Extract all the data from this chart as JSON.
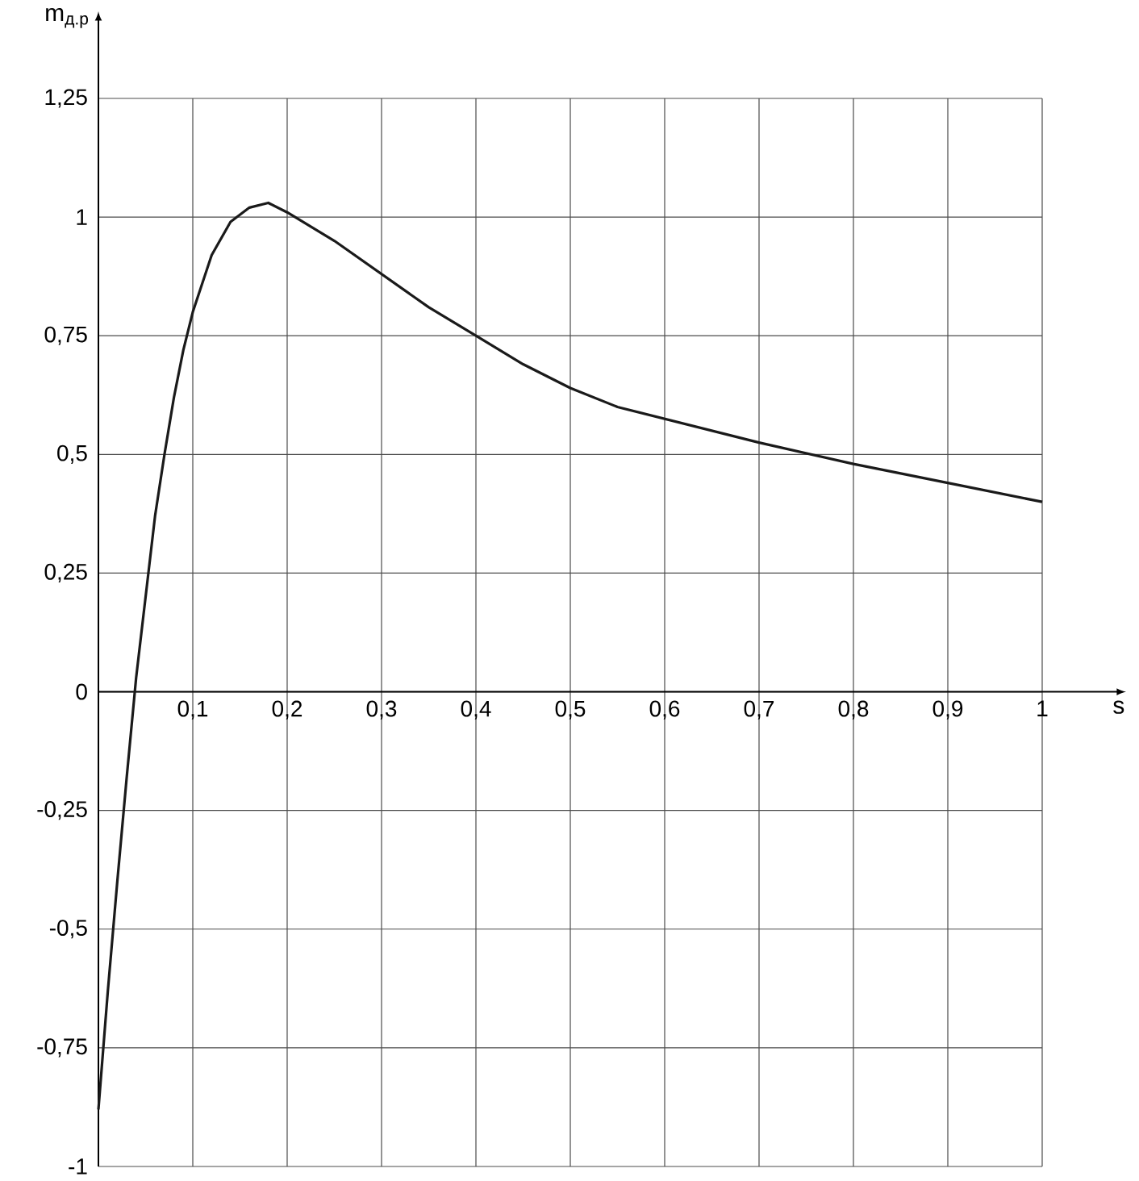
{
  "chart_data": {
    "type": "line",
    "xlabel": "s",
    "ylabel": "m$_{д.р}$",
    "x": [
      0,
      0.01,
      0.02,
      0.03,
      0.04,
      0.05,
      0.06,
      0.07,
      0.08,
      0.09,
      0.1,
      0.12,
      0.14,
      0.16,
      0.18,
      0.2,
      0.25,
      0.3,
      0.35,
      0.4,
      0.45,
      0.5,
      0.55,
      0.6,
      0.7,
      0.8,
      0.9,
      1
    ],
    "values": [
      -0.88,
      -0.63,
      -0.4,
      -0.18,
      0.03,
      0.2,
      0.37,
      0.5,
      0.62,
      0.72,
      0.8,
      0.92,
      0.99,
      1.02,
      1.03,
      1.01,
      0.95,
      0.88,
      0.81,
      0.75,
      0.69,
      0.64,
      0.6,
      0.575,
      0.525,
      0.48,
      0.44,
      0.4
    ],
    "color": "#1a1a1a",
    "xlim": [
      0,
      1
    ],
    "ylim": [
      -1,
      1.25
    ],
    "xticks": [
      {
        "value": 0.1,
        "label": "0,1"
      },
      {
        "value": 0.2,
        "label": "0,2"
      },
      {
        "value": 0.3,
        "label": "0,3"
      },
      {
        "value": 0.4,
        "label": "0,4"
      },
      {
        "value": 0.5,
        "label": "0,5"
      },
      {
        "value": 0.6,
        "label": "0,6"
      },
      {
        "value": 0.7,
        "label": "0,7"
      },
      {
        "value": 0.8,
        "label": "0,8"
      },
      {
        "value": 0.9,
        "label": "0,9"
      },
      1
    ],
    "yticks": [
      -1,
      {
        "value": -0.75,
        "label": "-0,75"
      },
      {
        "value": -0.5,
        "label": "-0,5"
      },
      {
        "value": -0.25,
        "label": "-0,25"
      },
      0,
      {
        "value": 0.25,
        "label": "0,25"
      },
      {
        "value": 0.5,
        "label": "0,5"
      },
      {
        "value": 0.75,
        "label": "0,75"
      },
      1,
      {
        "value": 1.25,
        "label": "1,25"
      }
    ],
    "grid": true,
    "marker": "none",
    "line_style": "solid"
  }
}
